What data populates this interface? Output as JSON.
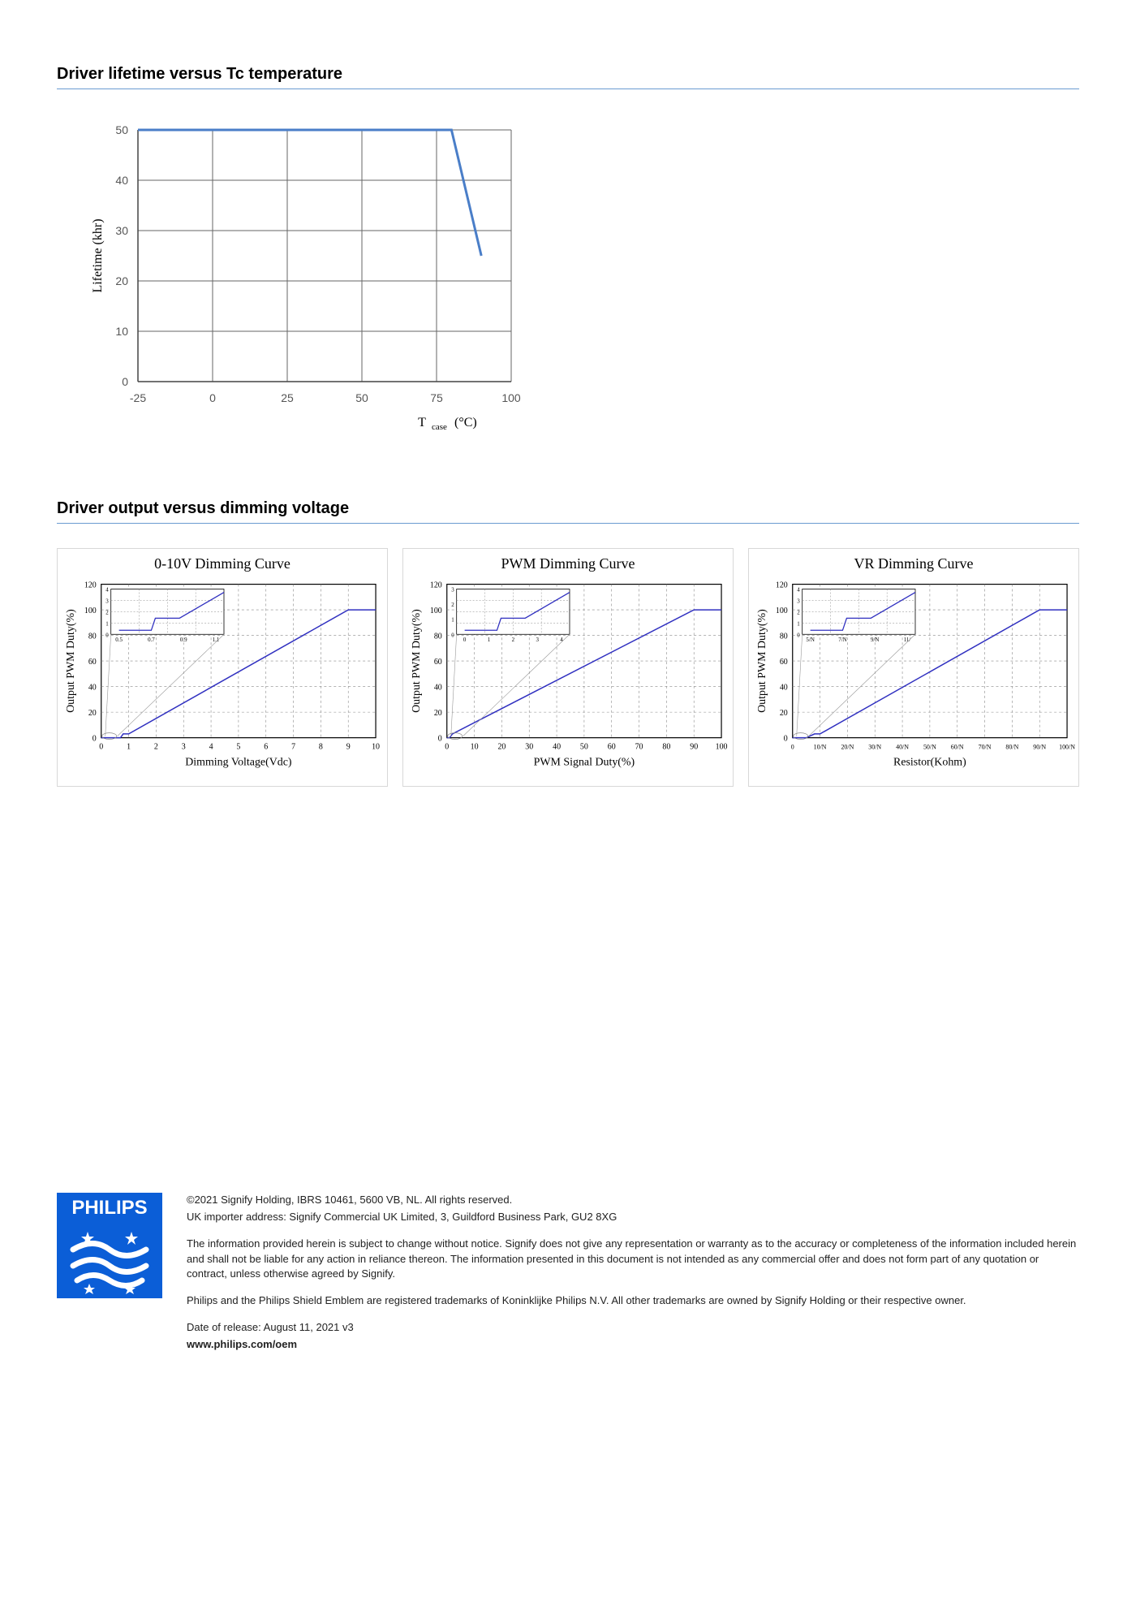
{
  "section1": {
    "title": "Driver lifetime versus Tc temperature",
    "chart": {
      "type": "line",
      "xlabel": "Tcase (°C)",
      "ylabel": "Lifetime (khr)",
      "xlim": [
        -25,
        100
      ],
      "ylim": [
        0,
        50
      ],
      "xtick_step": 25,
      "ytick_step": 10,
      "xticks": [
        -25,
        0,
        25,
        50,
        75,
        100
      ],
      "yticks": [
        0,
        10,
        20,
        30,
        40,
        50
      ],
      "line_color": "#4a7ec8",
      "line_width": 3,
      "grid_color": "#666666",
      "background_color": "#ffffff",
      "axis_fontsize": 14,
      "label_fontsize": 16,
      "data": [
        {
          "x": -25,
          "y": 50
        },
        {
          "x": 80,
          "y": 50
        },
        {
          "x": 90,
          "y": 25
        }
      ]
    }
  },
  "section2": {
    "title": "Driver output versus dimming voltage",
    "charts": [
      {
        "title": "0-10V Dimming Curve",
        "type": "line",
        "xlabel": "Dimming Voltage(Vdc)",
        "ylabel": "Output PWM Duty(%)",
        "xlim": [
          0,
          10
        ],
        "ylim": [
          0,
          120
        ],
        "xtick_step": 1,
        "ytick_step": 20,
        "xticks": [
          0,
          1,
          2,
          3,
          4,
          5,
          6,
          7,
          8,
          9,
          10
        ],
        "yticks": [
          0,
          20,
          40,
          60,
          80,
          100,
          120
        ],
        "line_color": "#3030c0",
        "grid_color": "#888888",
        "inset": {
          "xlabels": [
            "0.5",
            "0.7",
            "0.9",
            "1.1"
          ],
          "ylabels": [
            "0",
            "1",
            "2",
            "3",
            "4"
          ]
        },
        "data": [
          {
            "x": 0,
            "y": 0
          },
          {
            "x": 0.7,
            "y": 0
          },
          {
            "x": 0.8,
            "y": 3
          },
          {
            "x": 1,
            "y": 3
          },
          {
            "x": 9,
            "y": 100
          },
          {
            "x": 10,
            "y": 100
          }
        ]
      },
      {
        "title": "PWM Dimming Curve",
        "type": "line",
        "xlabel": "PWM Signal Duty(%)",
        "ylabel": "Output PWM Duty(%)",
        "xlim": [
          0,
          100
        ],
        "ylim": [
          0,
          120
        ],
        "xtick_step": 10,
        "ytick_step": 20,
        "xticks": [
          0,
          10,
          20,
          30,
          40,
          50,
          60,
          70,
          80,
          90,
          100
        ],
        "yticks": [
          0,
          20,
          40,
          60,
          80,
          100,
          120
        ],
        "line_color": "#3030c0",
        "grid_color": "#888888",
        "inset": {
          "xlabels": [
            "0",
            "1",
            "2",
            "3",
            "4"
          ],
          "ylabels": [
            "0",
            "1",
            "2",
            "3"
          ]
        },
        "data": [
          {
            "x": 0,
            "y": 0
          },
          {
            "x": 1,
            "y": 0
          },
          {
            "x": 2,
            "y": 3
          },
          {
            "x": 90,
            "y": 100
          },
          {
            "x": 100,
            "y": 100
          }
        ]
      },
      {
        "title": "VR Dimming Curve",
        "type": "line",
        "xlabel": "Resistor(Kohm)",
        "ylabel": "Output PWM Duty(%)",
        "xlim": [
          0,
          100
        ],
        "ylim": [
          0,
          120
        ],
        "xtick_step": 10,
        "ytick_step": 20,
        "xticks_labels": [
          "0",
          "10/N",
          "20/N",
          "30/N",
          "40/N",
          "50/N",
          "60/N",
          "70/N",
          "80/N",
          "90/N",
          "100/N"
        ],
        "yticks": [
          0,
          20,
          40,
          60,
          80,
          100,
          120
        ],
        "line_color": "#3030c0",
        "grid_color": "#888888",
        "inset": {
          "xlabels": [
            "5/N",
            "7/N",
            "9/N",
            "11/"
          ],
          "ylabels": [
            "0",
            "1",
            "2",
            "3",
            "4"
          ]
        },
        "data": [
          {
            "x": 0,
            "y": 0
          },
          {
            "x": 5,
            "y": 0
          },
          {
            "x": 8,
            "y": 3
          },
          {
            "x": 10,
            "y": 3
          },
          {
            "x": 90,
            "y": 100
          },
          {
            "x": 100,
            "y": 100
          }
        ]
      }
    ]
  },
  "footer": {
    "copyright": "©2021 Signify Holding, IBRS 10461, 5600 VB, NL. All rights reserved.",
    "importer": "UK importer address: Signify Commercial UK Limited, 3, Guildford Business Park, GU2 8XG",
    "disclaimer": "The information provided herein is subject to change without notice. Signify does not give any representation or warranty as to the accuracy or completeness of the information included herein and shall not be liable for any action in reliance thereon. The information presented in this document is not intended as any commercial offer and does not form part of any quotation or contract, unless otherwise agreed by Signify.",
    "trademark": "Philips and the Philips Shield Emblem are registered trademarks of Koninklijke Philips N.V. All other trademarks are owned by Signify Holding or their respective owner.",
    "release": "Date of release: August 11, 2021 v3",
    "website": "www.philips.com/oem",
    "logo_text": "PHILIPS",
    "logo_bg": "#0b5ed7",
    "logo_text_color": "#ffffff"
  }
}
